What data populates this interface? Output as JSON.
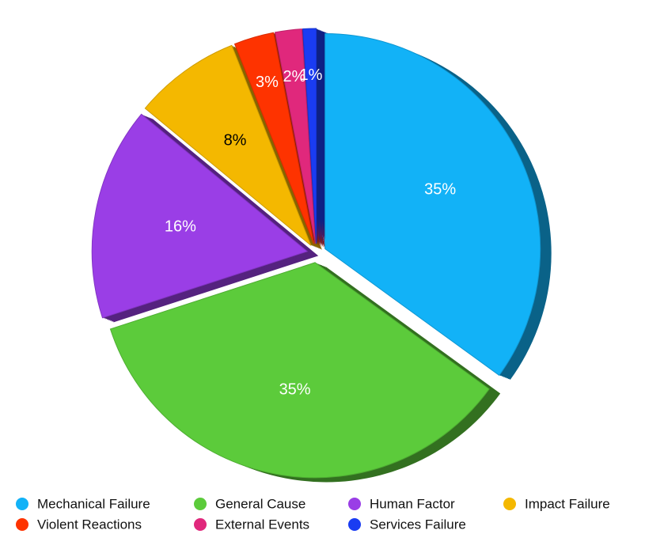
{
  "chart_data": {
    "type": "pie",
    "categories": [
      "Mechanical Failure",
      "General Cause",
      "Human Factor",
      "Impact Failure",
      "Violent Reactions",
      "External Events",
      "Services Failure"
    ],
    "values": [
      35,
      35,
      16,
      8,
      3,
      2,
      1
    ],
    "value_labels": [
      "35%",
      "35%",
      "16%",
      "8%",
      "3%",
      "2%",
      "1%"
    ],
    "colors": [
      "#12b2f7",
      "#5ccb3b",
      "#9a3ee6",
      "#f4b800",
      "#fe3300",
      "#e0287c",
      "#1a3cf2"
    ],
    "legend": "bottom"
  }
}
